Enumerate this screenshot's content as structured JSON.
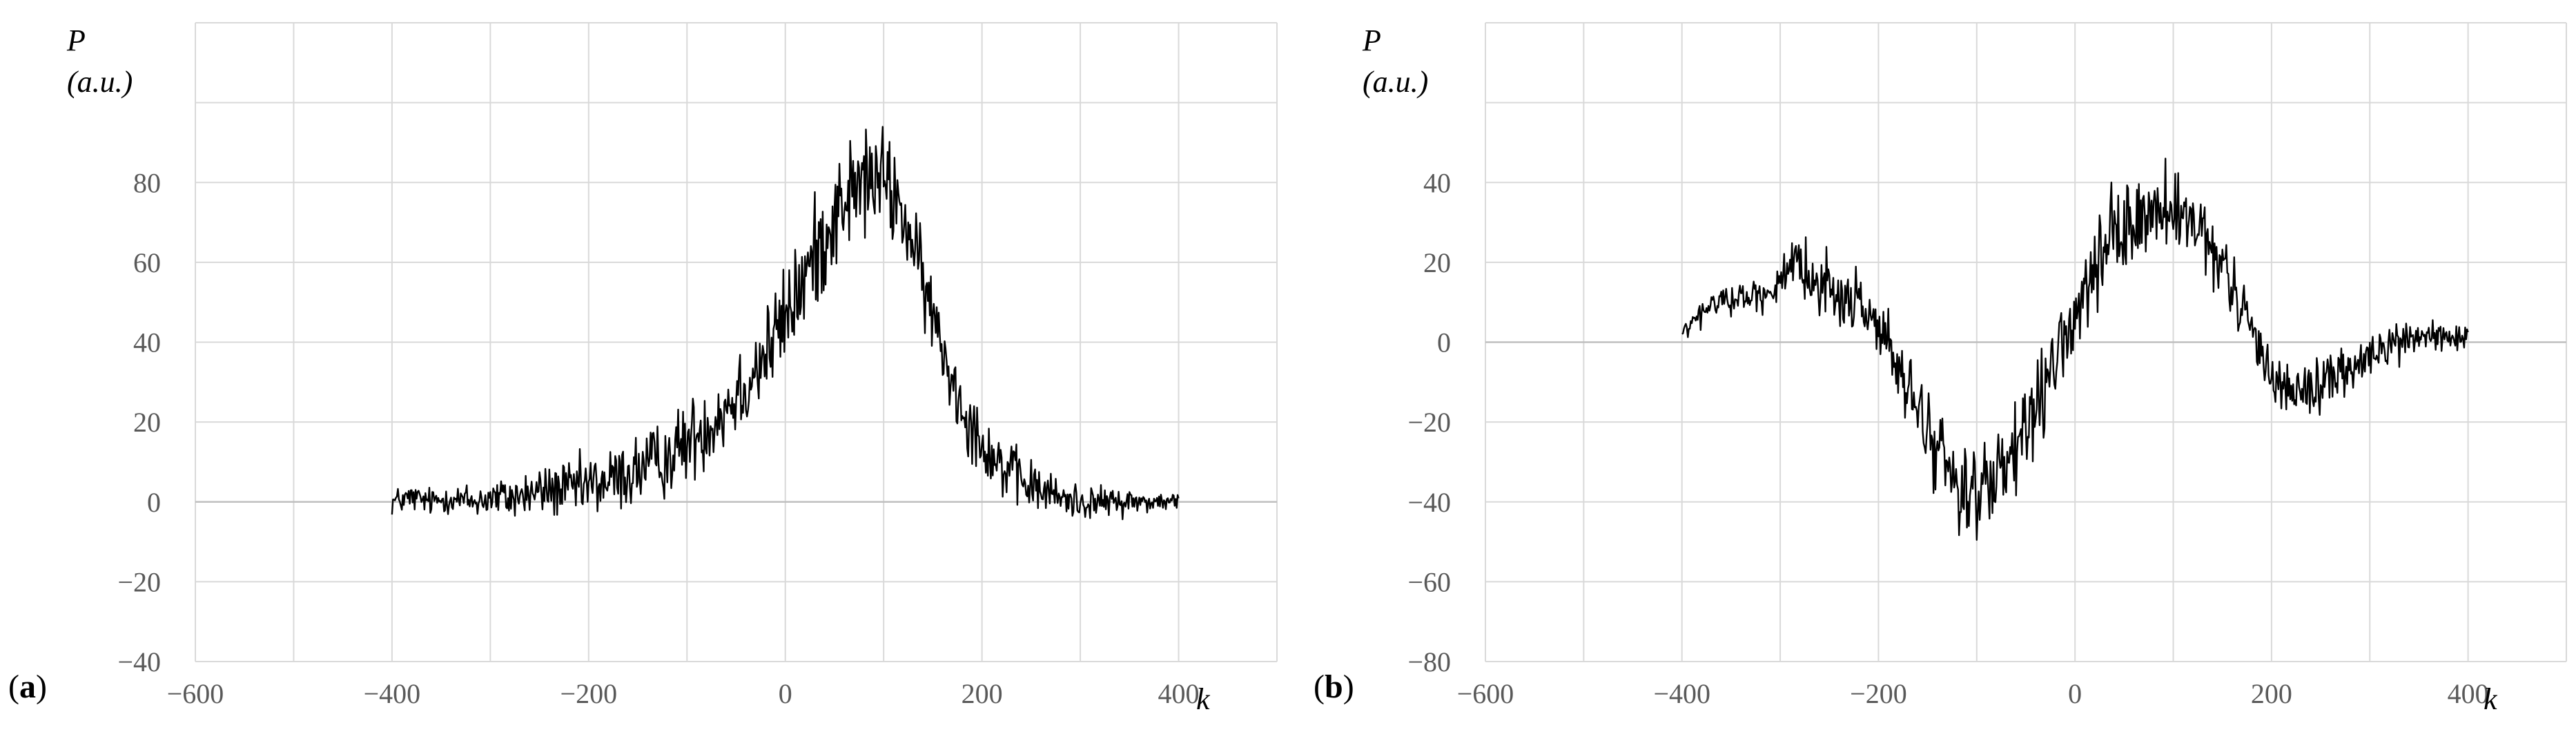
{
  "colors": {
    "line": "#000000",
    "grid": "#d9d9d9",
    "zero_line": "#bfbfbf",
    "tick_text": "#595959",
    "background": "#ffffff"
  },
  "chart_data": [
    {
      "type": "line",
      "panel_label": "a",
      "title": "",
      "ylabel": "P",
      "ylabel_unit": "(a.u.)",
      "xlabel": "k",
      "xlim": [
        -600,
        500
      ],
      "ylim": [
        -40,
        120
      ],
      "x_ticks": [
        -600,
        -400,
        -200,
        0,
        200,
        400
      ],
      "x_tick_labels": [
        "−600",
        "−400",
        "−200",
        "0",
        "200",
        "400"
      ],
      "y_ticks": [
        -40,
        -20,
        0,
        20,
        40,
        60,
        80
      ],
      "y_tick_labels": [
        "−40",
        "−20",
        "0",
        "20",
        "40",
        "60",
        "80"
      ],
      "grid": true,
      "series": [
        {
          "x": [
            -400,
            -380,
            -360,
            -340,
            -320,
            -300,
            -280,
            -260,
            -240,
            -220,
            -200,
            -180,
            -160,
            -140,
            -120,
            -100,
            -80,
            -60,
            -40,
            -20,
            0,
            20,
            40,
            60,
            80,
            100,
            120,
            140,
            160,
            180,
            200,
            220,
            240,
            260,
            280,
            300,
            320,
            340,
            360,
            380,
            400
          ],
          "y": [
            0,
            1,
            0,
            1,
            0,
            1,
            1,
            2,
            3,
            3,
            4,
            5,
            7,
            9,
            11,
            15,
            19,
            24,
            30,
            37,
            46,
            56,
            67,
            76,
            80,
            81,
            72,
            55,
            38,
            24,
            15,
            9,
            5,
            3,
            1,
            0,
            0,
            0,
            0,
            0,
            0
          ],
          "noise_amplitude": [
            3,
            3,
            3,
            3,
            4,
            4,
            5,
            5,
            6,
            6,
            7,
            7,
            8,
            8,
            8,
            9,
            9,
            10,
            10,
            11,
            11,
            12,
            12,
            12,
            12,
            11,
            10,
            9,
            8,
            8,
            7,
            7,
            6,
            5,
            4,
            4,
            3,
            3,
            3,
            2,
            2
          ],
          "samples_per_unit_k": 1
        }
      ]
    },
    {
      "type": "line",
      "panel_label": "b",
      "title": "",
      "ylabel": "P",
      "ylabel_unit": "(a.u.)",
      "xlabel": "k",
      "xlim": [
        -600,
        500
      ],
      "ylim": [
        -80,
        80
      ],
      "x_ticks": [
        -600,
        -400,
        -200,
        0,
        200,
        400
      ],
      "x_tick_labels": [
        "−600",
        "−400",
        "−200",
        "0",
        "200",
        "400"
      ],
      "y_ticks": [
        -80,
        -60,
        -40,
        -20,
        0,
        20,
        40
      ],
      "y_tick_labels": [
        "−80",
        "−60",
        "−40",
        "−20",
        "0",
        "20",
        "40"
      ],
      "grid": true,
      "series": [
        {
          "x": [
            -400,
            -380,
            -360,
            -340,
            -320,
            -300,
            -280,
            -260,
            -240,
            -220,
            -200,
            -180,
            -160,
            -140,
            -120,
            -100,
            -80,
            -60,
            -40,
            -20,
            0,
            20,
            40,
            60,
            80,
            100,
            120,
            140,
            160,
            180,
            200,
            220,
            240,
            260,
            280,
            300,
            320,
            340,
            360,
            380,
            400
          ],
          "y": [
            2,
            7,
            11,
            11,
            12,
            15,
            18,
            16,
            11,
            10,
            5,
            -8,
            -17,
            -27,
            -35,
            -38,
            -36,
            -28,
            -18,
            -5,
            6,
            17,
            26,
            30,
            33,
            32,
            29,
            22,
            14,
            3,
            -8,
            -12,
            -12,
            -9,
            -7,
            -4,
            -1,
            1,
            2,
            1,
            0
          ],
          "noise_amplitude": [
            2,
            3,
            3,
            3,
            4,
            5,
            6,
            6,
            7,
            7,
            7,
            8,
            8,
            9,
            10,
            10,
            10,
            10,
            9,
            9,
            9,
            9,
            10,
            10,
            10,
            9,
            8,
            7,
            7,
            6,
            6,
            6,
            6,
            6,
            5,
            5,
            5,
            4,
            4,
            3,
            3
          ],
          "samples_per_unit_k": 1
        }
      ]
    }
  ]
}
